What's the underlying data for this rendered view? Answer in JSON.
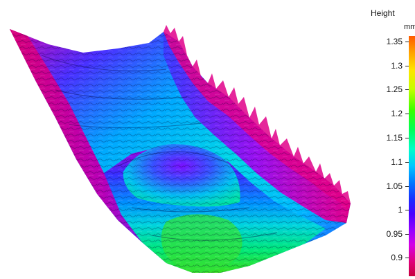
{
  "legend": {
    "title": "Height",
    "unit": "mm",
    "ticks": [
      "1.35",
      "1.3",
      "1.25",
      "1.2",
      "1.15",
      "1.1",
      "1.05",
      "1",
      "0.95",
      "0.9"
    ]
  },
  "colors": {
    "high": "#ff5a00",
    "mid_high": "#39ff00",
    "mid": "#00c8ff",
    "mid_low": "#1a2cff",
    "low": "#c8003c"
  }
}
